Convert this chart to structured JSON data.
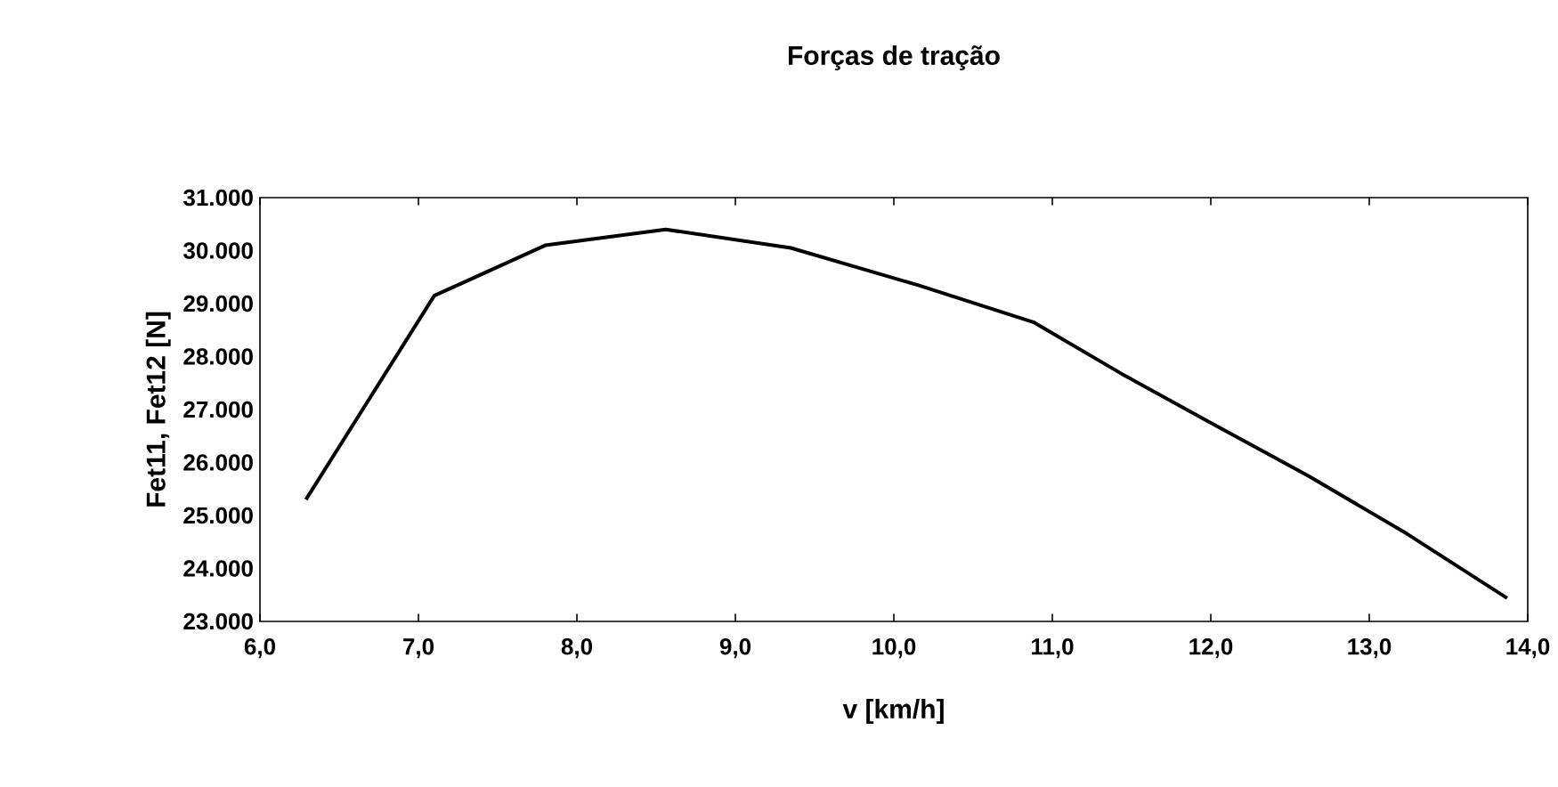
{
  "chart_data": {
    "type": "line",
    "title": "Forças de tração",
    "xlabel": "v [km/h]",
    "ylabel": "Fet11, Fet12 [N]",
    "x": [
      6.29,
      7.1,
      7.8,
      8.56,
      9.35,
      10.15,
      10.88,
      11.44,
      12.0,
      12.62,
      13.24,
      13.87
    ],
    "series": [
      {
        "color": "#000000",
        "values": [
          25300,
          29150,
          30100,
          30400,
          30050,
          29350,
          28650,
          27670,
          26750,
          25740,
          24650,
          23440
        ]
      }
    ],
    "xlim": [
      6,
      14
    ],
    "ylim": [
      23000,
      31000
    ],
    "xticks": [
      {
        "value": 6,
        "label": "6,0"
      },
      {
        "value": 7,
        "label": "7,0"
      },
      {
        "value": 8,
        "label": "8,0"
      },
      {
        "value": 9,
        "label": "9,0"
      },
      {
        "value": 10,
        "label": "10,0"
      },
      {
        "value": 11,
        "label": "11,0"
      },
      {
        "value": 12,
        "label": "12,0"
      },
      {
        "value": 13,
        "label": "13,0"
      },
      {
        "value": 14,
        "label": "14,0"
      }
    ],
    "yticks": [
      {
        "value": 23000,
        "label": "23.000"
      },
      {
        "value": 24000,
        "label": "24.000"
      },
      {
        "value": 25000,
        "label": "25.000"
      },
      {
        "value": 26000,
        "label": "26.000"
      },
      {
        "value": 27000,
        "label": "27.000"
      },
      {
        "value": 28000,
        "label": "28.000"
      },
      {
        "value": 29000,
        "label": "29.000"
      },
      {
        "value": 30000,
        "label": "30.000"
      },
      {
        "value": 31000,
        "label": "31.000"
      }
    ],
    "grid": false,
    "marker": "none",
    "line_style": "solid"
  }
}
